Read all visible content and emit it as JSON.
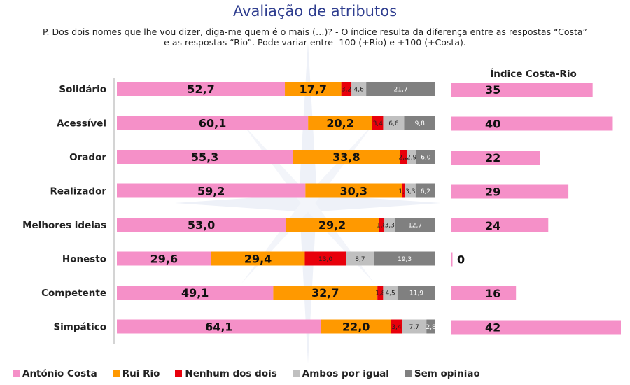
{
  "title": "Avaliação de atributos",
  "subtitle_line1": "P. Dos dois nomes que lhe vou dizer, diga-me quem é o mais (…)? - O índice resulta da diferença entre as respostas “Costa”",
  "subtitle_line2": "e as respostas “Rio”. Pode variar entre -100 (+Rio) e +100 (+Costa).",
  "colors": {
    "antonio_costa": "#f590c8",
    "rui_rio": "#ff9900",
    "nenhum": "#e8000b",
    "ambos": "#c0c0c0",
    "sem_opiniao": "#808080",
    "index_bar": "#f590c8"
  },
  "chart_data": [
    {
      "type": "bar",
      "orientation": "horizontal",
      "stacked": true,
      "categories": [
        "Solidário",
        "Acessível",
        "Orador",
        "Realizador",
        "Melhores ideias",
        "Honesto",
        "Competente",
        "Simpático"
      ],
      "series": [
        {
          "name": "António Costa",
          "values": [
            52.7,
            60.1,
            55.3,
            59.2,
            53.0,
            29.6,
            49.1,
            64.1
          ],
          "labels": [
            "52,7",
            "60,1",
            "55,3",
            "59,2",
            "53,0",
            "29,6",
            "49,1",
            "64,1"
          ]
        },
        {
          "name": "Rui Rio",
          "values": [
            17.7,
            20.2,
            33.8,
            30.3,
            29.2,
            29.4,
            32.7,
            22.0
          ],
          "labels": [
            "17,7",
            "20,2",
            "33,8",
            "30,3",
            "29,2",
            "29,4",
            "32,7",
            "22,0"
          ]
        },
        {
          "name": "Nenhum dos dois",
          "values": [
            3.2,
            3.4,
            2.2,
            1.0,
            1.8,
            13.0,
            1.8,
            3.4
          ],
          "labels": [
            "3,2",
            "3,4",
            "2,2",
            "1,0",
            "1,8",
            "13,0",
            "1,8",
            "3,4"
          ]
        },
        {
          "name": "Ambos por igual",
          "values": [
            4.6,
            6.6,
            2.9,
            3.3,
            3.3,
            8.7,
            4.5,
            7.7
          ],
          "labels": [
            "4,6",
            "6,6",
            "2,9",
            "3,3",
            "3,3",
            "8,7",
            "4,5",
            "7,7"
          ]
        },
        {
          "name": "Sem opinião",
          "values": [
            21.7,
            9.8,
            6.0,
            6.2,
            12.7,
            19.3,
            11.9,
            2.8
          ],
          "labels": [
            "21,7",
            "9,8",
            "6,0",
            "6,2",
            "12,7",
            "19,3",
            "11,9",
            "2,8"
          ]
        }
      ],
      "xlim": [
        0,
        100
      ],
      "legend_position": "bottom"
    },
    {
      "type": "bar",
      "orientation": "horizontal",
      "title": "Índice Costa-Rio",
      "categories": [
        "Solidário",
        "Acessível",
        "Orador",
        "Realizador",
        "Melhores ideias",
        "Honesto",
        "Competente",
        "Simpático"
      ],
      "values": [
        35,
        40,
        22,
        29,
        24,
        0,
        16,
        42
      ],
      "labels": [
        "35",
        "40",
        "22",
        "29",
        "24",
        "0",
        "16",
        "42"
      ],
      "xlim": [
        0,
        42
      ]
    }
  ]
}
